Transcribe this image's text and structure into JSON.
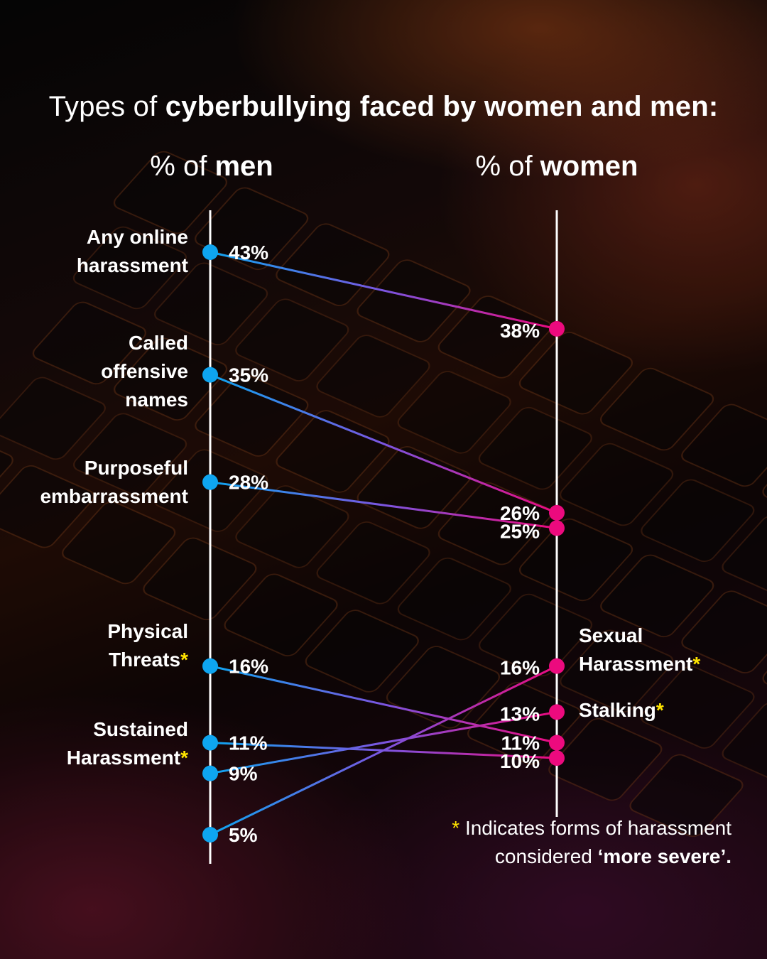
{
  "title": {
    "regular": "Types of ",
    "bold": "cyberbullying faced by women and men:"
  },
  "columns": {
    "men": {
      "regular": "% of ",
      "bold": "men"
    },
    "women": {
      "regular": "% of ",
      "bold": "women"
    }
  },
  "left_labels": {
    "any_online": [
      "Any online",
      "harassment"
    ],
    "offensive_names": [
      "Called",
      "offensive",
      "names"
    ],
    "embarrassment": [
      "Purposeful",
      "embarrassment"
    ],
    "physical_threats": [
      "Physical",
      "Threats"
    ],
    "sustained": [
      "Sustained",
      "Harassment"
    ]
  },
  "right_labels": {
    "sexual": [
      "Sexual",
      "Harassment"
    ],
    "stalking": [
      "Stalking"
    ]
  },
  "star": "*",
  "footnote": {
    "line1": "Indicates forms of harassment",
    "line2_regular": "considered ",
    "line2_bold": "‘more severe’."
  },
  "colors": {
    "men": "#0ea5f0",
    "women": "#ec0a7e",
    "star": "#ffe400",
    "axis": "#ffffff"
  },
  "chart_data": {
    "type": "line",
    "x": [
      "% of men",
      "% of women"
    ],
    "series": [
      {
        "name": "Any online harassment",
        "values": [
          43,
          38
        ]
      },
      {
        "name": "Called offensive names",
        "values": [
          35,
          26
        ]
      },
      {
        "name": "Purposeful embarrassment",
        "values": [
          28,
          25
        ]
      },
      {
        "name": "Physical Threats",
        "values": [
          16,
          11
        ]
      },
      {
        "name": "Sustained Harassment",
        "values": [
          11,
          10
        ]
      },
      {
        "name": "Stalking",
        "values": [
          9,
          13
        ]
      },
      {
        "name": "Sexual Harassment",
        "values": [
          5,
          16
        ]
      }
    ],
    "value_labels_men": [
      "43%",
      "35%",
      "28%",
      "16%",
      "11%",
      "9%",
      "5%"
    ],
    "value_labels_women": [
      "38%",
      "26%",
      "25%",
      "11%",
      "10%",
      "13%",
      "16%"
    ],
    "ylim": [
      5,
      43
    ],
    "grid": false
  }
}
